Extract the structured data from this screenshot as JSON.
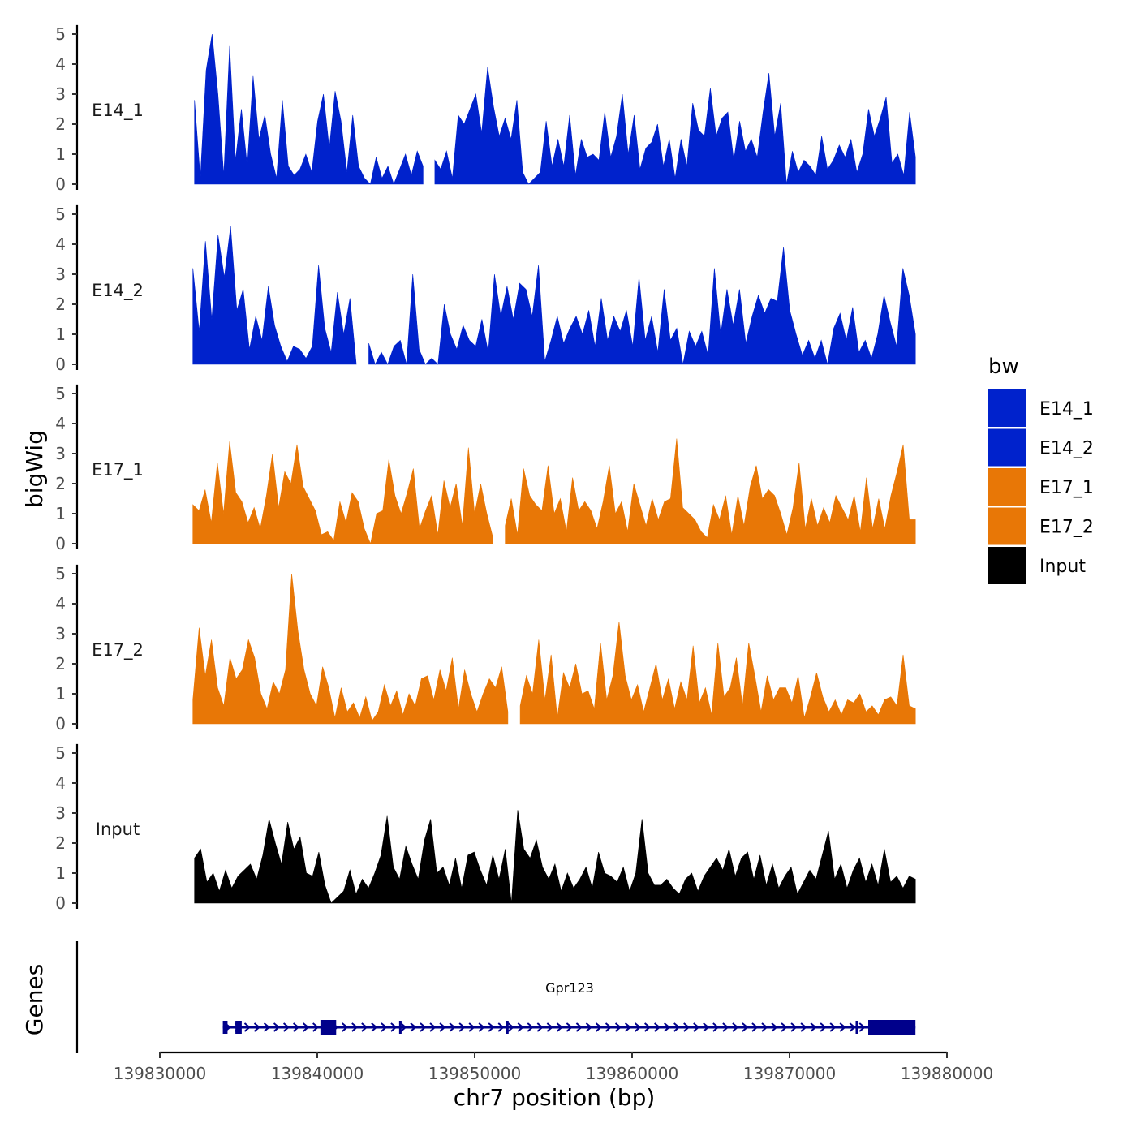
{
  "chart_data": {
    "type": "area",
    "chromosome": "chr7",
    "xlabel": "chr7 position (bp)",
    "ylabel": "bigWig",
    "genes_label": "Genes",
    "xlim": [
      139830000,
      139880000
    ],
    "x_ticks": [
      139830000,
      139840000,
      139850000,
      139860000,
      139870000,
      139880000
    ],
    "x_tick_labels": [
      "139830000",
      "139840000",
      "139850000",
      "139860000",
      "139870000",
      "139880000"
    ],
    "ylim": [
      0,
      5.3
    ],
    "y_ticks": [
      0,
      1,
      2,
      3,
      4,
      5
    ],
    "y_tick_labels": [
      "0",
      "1",
      "2",
      "3",
      "4",
      "5"
    ],
    "legend": {
      "title": "bw",
      "placement": "right",
      "entries": [
        {
          "label": "E14_1",
          "color": "#0022CC"
        },
        {
          "label": "E14_2",
          "color": "#0022CC"
        },
        {
          "label": "E17_1",
          "color": "#E87706"
        },
        {
          "label": "E17_2",
          "color": "#E87706"
        },
        {
          "label": "Input",
          "color": "#000000"
        }
      ]
    },
    "series": [
      {
        "name": "E14_1",
        "color": "#0022CC",
        "x_start": 139832200,
        "x_end": 139878000,
        "values": [
          2.8,
          0.2,
          3.8,
          5.0,
          3.0,
          0.3,
          4.6,
          0.8,
          2.5,
          0.6,
          3.6,
          1.5,
          2.3,
          1.0,
          0.2,
          2.8,
          0.6,
          0.3,
          0.5,
          1.0,
          0.4,
          2.1,
          3.0,
          1.2,
          3.1,
          2.1,
          0.4,
          2.3,
          0.6,
          0.2,
          0.0,
          0.9,
          0.2,
          0.6,
          0.0,
          0.5,
          1.0,
          0.3,
          1.1,
          0.6,
          null,
          0.8,
          0.5,
          1.1,
          0.2,
          2.3,
          2.0,
          2.5,
          3.0,
          1.7,
          3.9,
          2.6,
          1.6,
          2.2,
          1.5,
          2.8,
          0.4,
          0.0,
          0.2,
          0.4,
          2.1,
          0.6,
          1.5,
          0.6,
          2.3,
          0.3,
          1.5,
          0.9,
          1.0,
          0.8,
          2.4,
          0.9,
          1.6,
          3.0,
          1.0,
          2.3,
          0.5,
          1.2,
          1.4,
          2.0,
          0.6,
          1.5,
          0.2,
          1.5,
          0.6,
          2.7,
          1.8,
          1.6,
          3.2,
          1.6,
          2.2,
          2.4,
          0.8,
          2.1,
          1.1,
          1.5,
          0.9,
          2.4,
          3.7,
          1.6,
          2.7,
          0.0,
          1.1,
          0.4,
          0.8,
          0.6,
          0.3,
          1.6,
          0.5,
          0.8,
          1.3,
          0.9,
          1.5,
          0.4,
          1.0,
          2.5,
          1.6,
          2.2,
          2.9,
          0.7,
          1.0,
          0.3,
          2.4,
          0.9
        ]
      },
      {
        "name": "E14_2",
        "color": "#0022CC",
        "x_start": 139832100,
        "x_end": 139878000,
        "values": [
          3.2,
          1.1,
          4.1,
          1.5,
          4.3,
          2.9,
          4.6,
          1.8,
          2.5,
          0.5,
          1.6,
          0.8,
          2.6,
          1.3,
          0.6,
          0.1,
          0.6,
          0.5,
          0.2,
          0.6,
          3.3,
          1.2,
          0.4,
          2.4,
          1.0,
          2.2,
          0.0,
          null,
          0.7,
          0.0,
          0.4,
          0.0,
          0.6,
          0.8,
          0.0,
          3.0,
          0.5,
          0.0,
          0.2,
          0.0,
          2.0,
          1.0,
          0.5,
          1.3,
          0.8,
          0.6,
          1.5,
          0.4,
          3.0,
          1.6,
          2.6,
          1.5,
          2.7,
          2.5,
          1.6,
          3.3,
          0.1,
          0.8,
          1.6,
          0.7,
          1.2,
          1.6,
          1.0,
          1.8,
          0.6,
          2.2,
          0.8,
          1.6,
          1.1,
          1.8,
          0.6,
          2.9,
          0.8,
          1.6,
          0.4,
          2.5,
          0.8,
          1.2,
          0.0,
          1.1,
          0.6,
          1.1,
          0.3,
          3.2,
          1.0,
          2.5,
          1.3,
          2.5,
          0.7,
          1.6,
          2.3,
          1.7,
          2.2,
          2.1,
          3.9,
          1.8,
          1.0,
          0.3,
          0.8,
          0.2,
          0.8,
          0.0,
          1.2,
          1.7,
          0.8,
          1.9,
          0.4,
          0.8,
          0.2,
          1.0,
          2.3,
          1.4,
          0.6,
          3.2,
          2.3,
          1.0
        ]
      },
      {
        "name": "E17_1",
        "color": "#E87706",
        "x_start": 139832100,
        "x_end": 139878000,
        "values": [
          1.3,
          1.1,
          1.8,
          0.7,
          2.7,
          1.0,
          3.4,
          1.7,
          1.4,
          0.7,
          1.2,
          0.5,
          1.6,
          3.0,
          1.2,
          2.4,
          2.0,
          3.3,
          1.9,
          1.5,
          1.1,
          0.3,
          0.4,
          0.1,
          1.4,
          0.7,
          1.7,
          1.4,
          0.5,
          0.0,
          1.0,
          1.1,
          2.8,
          1.6,
          1.0,
          1.7,
          2.5,
          0.5,
          1.1,
          1.6,
          0.3,
          2.1,
          1.2,
          2.0,
          0.6,
          3.2,
          1.0,
          2.0,
          1.0,
          0.2,
          null,
          0.6,
          1.5,
          0.3,
          2.5,
          1.6,
          1.3,
          1.1,
          2.6,
          1.0,
          1.5,
          0.4,
          2.2,
          1.1,
          1.4,
          1.1,
          0.5,
          1.4,
          2.6,
          1.0,
          1.4,
          0.4,
          2.0,
          1.3,
          0.6,
          1.5,
          0.8,
          1.4,
          1.5,
          3.5,
          1.2,
          1.0,
          0.8,
          0.4,
          0.2,
          1.3,
          0.8,
          1.6,
          0.3,
          1.6,
          0.6,
          1.9,
          2.6,
          1.5,
          1.8,
          1.6,
          1.0,
          0.3,
          1.2,
          2.7,
          0.5,
          1.5,
          0.6,
          1.2,
          0.7,
          1.6,
          1.2,
          0.8,
          1.6,
          0.4,
          2.2,
          0.5,
          1.5,
          0.5,
          1.6,
          2.4,
          3.3,
          0.8,
          0.8
        ]
      },
      {
        "name": "E17_2",
        "color": "#E87706",
        "x_start": 139832100,
        "x_end": 139878000,
        "values": [
          0.8,
          3.2,
          1.6,
          2.8,
          1.2,
          0.6,
          2.2,
          1.5,
          1.8,
          2.8,
          2.2,
          1.0,
          0.5,
          1.4,
          1.0,
          1.8,
          5.0,
          3.1,
          1.8,
          1.0,
          0.6,
          1.9,
          1.2,
          0.2,
          1.2,
          0.4,
          0.7,
          0.2,
          0.9,
          0.1,
          0.4,
          1.3,
          0.6,
          1.1,
          0.3,
          1.0,
          0.6,
          1.5,
          1.6,
          0.8,
          1.8,
          1.1,
          2.2,
          0.5,
          1.8,
          1.0,
          0.4,
          1.0,
          1.5,
          1.2,
          1.9,
          0.4,
          null,
          0.6,
          1.6,
          1.0,
          2.8,
          0.8,
          2.3,
          0.2,
          1.7,
          1.2,
          2.0,
          1.0,
          1.1,
          0.5,
          2.7,
          0.8,
          1.6,
          3.4,
          1.6,
          0.8,
          1.3,
          0.4,
          1.2,
          2.0,
          0.8,
          1.5,
          0.5,
          1.4,
          0.8,
          2.6,
          0.7,
          1.2,
          0.3,
          2.7,
          0.9,
          1.2,
          2.2,
          0.6,
          2.7,
          1.6,
          0.4,
          1.6,
          0.8,
          1.2,
          1.2,
          0.7,
          1.6,
          0.2,
          0.9,
          1.7,
          0.9,
          0.4,
          0.8,
          0.3,
          0.8,
          0.7,
          1.0,
          0.4,
          0.6,
          0.3,
          0.8,
          0.9,
          0.6,
          2.3,
          0.6,
          0.5
        ]
      },
      {
        "name": "Input",
        "color": "#000000",
        "x_start": 139832200,
        "x_end": 139878000,
        "values": [
          1.5,
          1.8,
          0.7,
          1.0,
          0.4,
          1.1,
          0.5,
          0.9,
          1.1,
          1.3,
          0.8,
          1.6,
          2.8,
          2.0,
          1.3,
          2.7,
          1.8,
          2.2,
          1.0,
          0.9,
          1.7,
          0.6,
          0.0,
          0.2,
          0.4,
          1.1,
          0.3,
          0.8,
          0.5,
          1.0,
          1.6,
          2.9,
          1.2,
          0.8,
          1.9,
          1.3,
          0.8,
          2.1,
          2.8,
          1.0,
          1.2,
          0.6,
          1.5,
          0.5,
          1.6,
          1.7,
          1.1,
          0.6,
          1.6,
          0.8,
          1.8,
          0.0,
          3.1,
          1.8,
          1.5,
          2.1,
          1.2,
          0.8,
          1.3,
          0.4,
          1.0,
          0.5,
          0.8,
          1.2,
          0.5,
          1.7,
          1.0,
          0.9,
          0.7,
          1.2,
          0.4,
          1.0,
          2.8,
          1.0,
          0.6,
          0.6,
          0.8,
          0.5,
          0.3,
          0.8,
          1.0,
          0.4,
          0.9,
          1.2,
          1.5,
          1.1,
          1.8,
          0.9,
          1.5,
          1.7,
          0.8,
          1.6,
          0.6,
          1.3,
          0.5,
          0.9,
          1.2,
          0.3,
          0.7,
          1.1,
          0.8,
          1.6,
          2.4,
          0.8,
          1.3,
          0.5,
          1.1,
          1.5,
          0.7,
          1.3,
          0.6,
          1.8,
          0.7,
          0.9,
          0.5,
          0.9,
          0.8
        ]
      }
    ],
    "gene": {
      "name": "Gpr123",
      "start": 139834000,
      "end": 139878000,
      "strand": "+",
      "color": "#00008B",
      "exons": [
        [
          139834000,
          139834300
        ],
        [
          139834800,
          139835200
        ],
        [
          139840200,
          139841200
        ],
        [
          139845200,
          139845300
        ],
        [
          139852000,
          139852100
        ],
        [
          139874200,
          139874300
        ],
        [
          139875000,
          139878000
        ]
      ]
    }
  }
}
